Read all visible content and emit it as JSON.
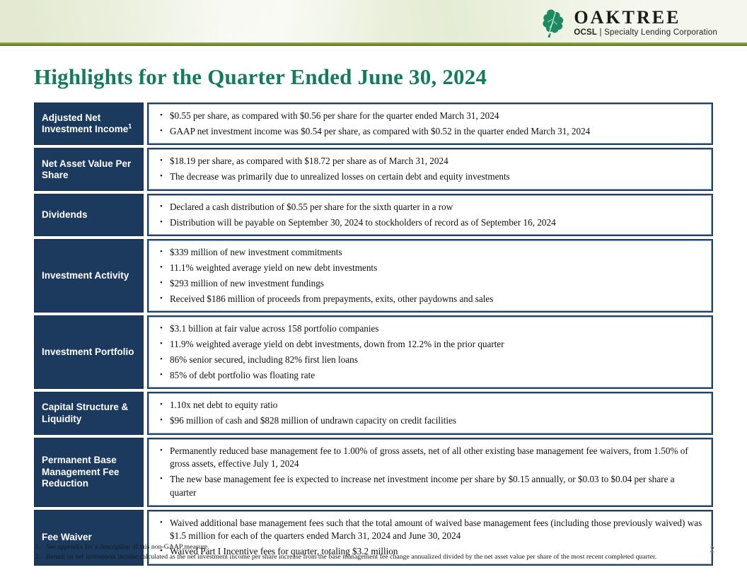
{
  "header": {
    "brand": "OAKTREE",
    "sub_brand_bold": "OCSL",
    "sub_brand_rest": " | Specialty Lending Corporation"
  },
  "title": "Highlights for the Quarter Ended June 30, 2024",
  "rows": [
    {
      "label": "Adjusted Net Investment Income",
      "superscript": "1",
      "bullets": [
        "$0.55 per share, as compared with $0.56 per share for the quarter ended March 31, 2024",
        "GAAP net investment income was $0.54 per share, as compared with $0.52 in the quarter ended March 31, 2024"
      ]
    },
    {
      "label": "Net Asset Value Per Share",
      "bullets": [
        "$18.19 per share, as compared with $18.72 per share as of March 31, 2024",
        "The decrease was primarily due to unrealized losses on certain debt and equity investments"
      ]
    },
    {
      "label": "Dividends",
      "bullets": [
        "Declared a cash distribution of $0.55 per share for the sixth quarter in a row",
        "Distribution will be payable on September 30, 2024 to stockholders of record as of September 16, 2024"
      ]
    },
    {
      "label": "Investment Activity",
      "bullets": [
        "$339 million of new investment commitments",
        "11.1% weighted average yield on new debt investments",
        "$293 million of new investment fundings",
        "Received $186 million of proceeds from prepayments, exits, other paydowns and sales"
      ]
    },
    {
      "label": "Investment Portfolio",
      "bullets": [
        "$3.1 billion at fair value across 158 portfolio companies",
        "11.9% weighted average yield on debt investments, down from 12.2% in the prior quarter",
        "86% senior secured, including 82% first lien loans",
        "85% of debt portfolio was floating rate"
      ]
    },
    {
      "label": "Capital Structure & Liquidity",
      "bullets": [
        "1.10x net debt to equity ratio",
        "$96 million of cash and $828 million of undrawn capacity on credit facilities"
      ]
    },
    {
      "label": "Permanent Base Management Fee Reduction",
      "bullets": [
        "Permanently reduced base management fee to 1.00% of gross assets, net of all other existing base management fee waivers, from 1.50% of gross assets, effective July 1, 2024",
        "The new base management fee is expected to increase net investment income per share by $0.15 annually, or $0.03 to $0.04 per share a quarter"
      ]
    },
    {
      "label": "Fee Waiver",
      "bullets": [
        "Waived additional base management fees such that the total amount of waived base management fees (including those previously waived) was $1.5 million for each of the quarters ended March 31, 2024 and June 30, 2024",
        "Waived Part I Incentive fees for quarter, totaling $3.2 million"
      ]
    }
  ],
  "footnotes": [
    "See appendix for a description of this non-GAAP measure.",
    "Return on net investment income calculated as the net investment income per share increase from the base management fee change annualized divided by the net asset value per share of the most recent completed quarter."
  ],
  "page_number": "2",
  "colors": {
    "brand_green": "#127C5D",
    "navy": "#1C3A5E",
    "header_line_olive": "#7D9A34",
    "header_bg": "#EDF1E0",
    "leaf_green": "#1E8A62",
    "page_number_gray": "#8A8A8A"
  }
}
